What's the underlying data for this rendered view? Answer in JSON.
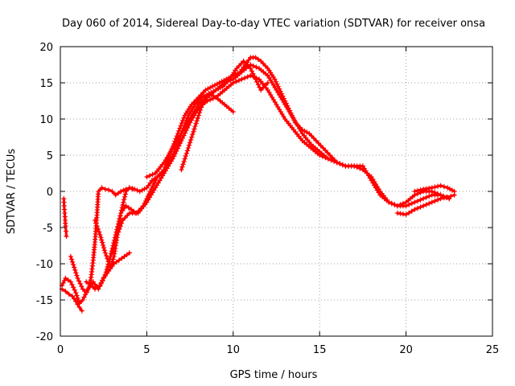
{
  "chart_data": {
    "type": "scatter",
    "title": "Day 060 of 2014, Sidereal Day-to-day VTEC variation (SDTVAR) for receiver onsa",
    "xlabel": "GPS time / hours",
    "ylabel": "SDTVAR / TECUs",
    "xlim": [
      0,
      25
    ],
    "ylim": [
      -20,
      20
    ],
    "xticks": [
      "0",
      "5",
      "10",
      "15",
      "20",
      "25"
    ],
    "yticks": [
      "-20",
      "-15",
      "-10",
      "-5",
      "0",
      "5",
      "10",
      "15",
      "20"
    ],
    "grid": true,
    "marker": "plus",
    "color": "#ff0000",
    "series": [
      {
        "name": "pass-1",
        "x": [
          0.2,
          0.22,
          0.25,
          0.28,
          0.3,
          0.33,
          0.35
        ],
        "y": [
          -1.0,
          -2.0,
          -3.0,
          -4.0,
          -4.8,
          -5.5,
          -6.2
        ]
      },
      {
        "name": "pass-2",
        "x": [
          0.1,
          0.3,
          0.6,
          0.9,
          1.1,
          1.3,
          1.6,
          1.9,
          2.2,
          2.5,
          2.8,
          3.1,
          3.4,
          3.7,
          4.0
        ],
        "y": [
          -13.0,
          -12.0,
          -12.5,
          -14.0,
          -15.5,
          -15.0,
          -13.5,
          -12.5,
          -13.5,
          -12.0,
          -11.0,
          -10.0,
          -9.5,
          -9.0,
          -8.5
        ]
      },
      {
        "name": "pass-3",
        "x": [
          0.1,
          0.3,
          0.5,
          0.7,
          0.9,
          1.1,
          1.25
        ],
        "y": [
          -13.5,
          -13.8,
          -14.2,
          -14.5,
          -15.2,
          -16.0,
          -16.5
        ]
      },
      {
        "name": "pass-4",
        "x": [
          0.6,
          0.8,
          1.0,
          1.3,
          1.5,
          1.7,
          1.8,
          1.9,
          2.0,
          2.1,
          2.2,
          2.4,
          2.6,
          2.8,
          3.0,
          3.2,
          3.5,
          3.8,
          4.0,
          4.2
        ],
        "y": [
          -9.0,
          -10.5,
          -12.0,
          -13.5,
          -14.0,
          -13.0,
          -11.5,
          -9.5,
          -7.0,
          -4.0,
          0.0,
          0.5,
          0.3,
          0.2,
          0.0,
          -0.5,
          0.0,
          0.3,
          0.5,
          0.3
        ]
      },
      {
        "name": "pass-5",
        "x": [
          2.0,
          2.3,
          2.6,
          2.9,
          3.1,
          3.3,
          3.5,
          3.8,
          4.0,
          4.3,
          4.6,
          5.0,
          5.3,
          5.6,
          5.9,
          6.2,
          6.6,
          7.0,
          7.4,
          7.8,
          8.2,
          8.6,
          9.0,
          9.5,
          10.0
        ],
        "y": [
          -4.0,
          -6.0,
          -8.5,
          -10.5,
          -9.0,
          -6.0,
          -3.0,
          0.0,
          0.5,
          0.3,
          0.0,
          0.5,
          1.5,
          2.0,
          2.5,
          3.5,
          5.5,
          8.0,
          10.5,
          12.0,
          13.0,
          13.5,
          13.0,
          12.0,
          11.0
        ]
      },
      {
        "name": "pass-6",
        "x": [
          1.5,
          1.8,
          2.0,
          2.3,
          2.6,
          2.9,
          3.2,
          3.5,
          3.8,
          4.1,
          4.4,
          4.8,
          5.2,
          5.6,
          6.0,
          6.4,
          6.8,
          7.2,
          7.6,
          8.0,
          8.4,
          8.8,
          9.2,
          9.6,
          10.0,
          10.4,
          10.7,
          11.0,
          11.3,
          11.6,
          12.0,
          12.4,
          12.8,
          13.2,
          13.6,
          14.0,
          14.4,
          14.8,
          15.2,
          15.6,
          16.0
        ],
        "y": [
          -12.5,
          -13.0,
          -13.5,
          -13.0,
          -11.5,
          -9.0,
          -6.0,
          -3.0,
          -2.0,
          -2.5,
          -3.0,
          -2.0,
          0.0,
          2.0,
          3.0,
          5.5,
          8.0,
          10.5,
          12.0,
          13.0,
          14.0,
          14.5,
          15.0,
          15.5,
          16.0,
          16.5,
          17.5,
          18.5,
          18.5,
          18.0,
          17.0,
          15.5,
          13.5,
          11.5,
          9.5,
          8.5,
          8.0,
          7.0,
          6.0,
          5.0,
          4.0
        ]
      },
      {
        "name": "pass-7",
        "x": [
          3.0,
          3.3,
          3.6,
          4.0,
          4.5,
          5.0,
          5.5,
          6.0,
          6.5,
          7.0,
          7.5,
          8.0,
          8.5,
          9.0,
          9.5,
          10.0,
          10.5,
          11.0,
          11.5,
          12.0,
          12.5,
          13.0,
          13.5,
          14.0,
          14.5,
          15.0,
          15.5,
          16.0,
          16.5,
          17.0,
          17.5,
          18.0,
          18.5,
          19.0,
          19.5,
          20.0,
          20.5,
          21.0,
          21.5,
          22.0,
          22.5
        ],
        "y": [
          -8.5,
          -6.0,
          -4.0,
          -3.0,
          -3.0,
          -1.5,
          0.5,
          2.5,
          4.5,
          7.0,
          9.5,
          11.5,
          12.5,
          13.0,
          14.0,
          15.0,
          15.5,
          16.0,
          15.5,
          14.0,
          12.0,
          10.0,
          8.5,
          7.0,
          6.0,
          5.0,
          4.5,
          4.0,
          3.5,
          3.5,
          3.5,
          1.5,
          -0.5,
          -1.5,
          -2.0,
          -1.5,
          -0.5,
          0.0,
          0.0,
          -0.5,
          -1.0
        ]
      },
      {
        "name": "pass-8",
        "x": [
          5.0,
          5.5,
          6.0,
          6.5,
          7.0,
          7.5,
          8.0,
          8.5,
          9.0,
          9.5,
          10.0,
          10.5,
          11.0,
          11.5,
          12.0,
          12.5,
          13.0,
          13.5,
          14.0,
          14.5,
          15.0,
          15.5,
          16.0,
          16.5,
          17.0,
          17.5,
          18.0,
          18.5,
          19.0,
          19.5,
          20.0,
          20.5,
          21.0,
          21.5,
          22.0,
          22.5
        ],
        "y": [
          2.0,
          2.5,
          4.0,
          6.0,
          8.0,
          10.0,
          12.0,
          13.0,
          14.0,
          15.0,
          15.5,
          16.5,
          17.5,
          17.0,
          16.0,
          14.0,
          12.0,
          10.0,
          8.0,
          6.5,
          5.5,
          4.5,
          4.0,
          3.5,
          3.5,
          3.0,
          2.0,
          0.0,
          -1.5,
          -2.0,
          -2.0,
          -1.5,
          -1.0,
          -0.5,
          -0.5,
          -1.0
        ]
      },
      {
        "name": "pass-9",
        "x": [
          7.0,
          7.4,
          7.8,
          8.2,
          8.6,
          9.0,
          9.4,
          9.8,
          10.2,
          10.6,
          11.0,
          11.3,
          11.6,
          12.0
        ],
        "y": [
          3.0,
          6.0,
          9.0,
          12.0,
          13.5,
          14.0,
          14.5,
          15.5,
          17.0,
          18.0,
          17.0,
          15.5,
          14.0,
          15.0
        ]
      },
      {
        "name": "pass-10",
        "x": [
          19.5,
          20.0,
          20.5,
          21.0,
          21.5,
          22.0,
          22.4,
          22.8
        ],
        "y": [
          -3.0,
          -3.2,
          -2.5,
          -2.0,
          -1.5,
          -1.0,
          -0.8,
          -0.5
        ]
      },
      {
        "name": "pass-11",
        "x": [
          20.5,
          21.0,
          21.5,
          22.0,
          22.4,
          22.8
        ],
        "y": [
          0.0,
          0.3,
          0.5,
          0.8,
          0.5,
          0.0
        ]
      }
    ]
  }
}
